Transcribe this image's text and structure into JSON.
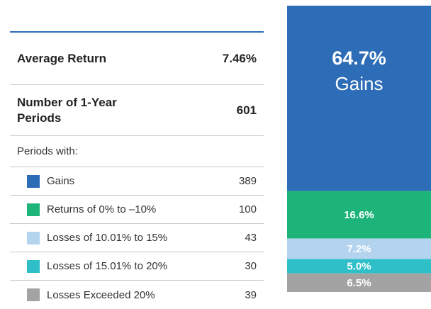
{
  "summary": [
    {
      "label": "Average Return",
      "value": "7.46%"
    },
    {
      "label": "Number of 1-Year Periods",
      "value": "601"
    }
  ],
  "chart_data": {
    "type": "stacked-bar",
    "subtitle": "Periods with:",
    "series": [
      {
        "name": "Gains",
        "color": "#2d6db8",
        "count": 389,
        "values": [
          64.7
        ],
        "value_labels": [
          "64.7%"
        ]
      },
      {
        "name": "Returns of 0% to –10%",
        "color": "#1db47a",
        "count": 100,
        "values": [
          16.6
        ],
        "value_labels": [
          "16.6%"
        ]
      },
      {
        "name": "Losses of 10.01% to 15%",
        "color": "#b4d3ef",
        "count": 43,
        "values": [
          7.2
        ],
        "value_labels": [
          "7.2%"
        ]
      },
      {
        "name": "Losses of 15.01% to 20%",
        "color": "#2ebfc9",
        "count": 30,
        "values": [
          5.0
        ],
        "value_labels": [
          "5.0%"
        ]
      },
      {
        "name": "Losses Exceeded 20%",
        "color": "#a3a3a3",
        "count": 39,
        "values": [
          6.5
        ],
        "value_labels": [
          "6.5%"
        ]
      }
    ]
  }
}
